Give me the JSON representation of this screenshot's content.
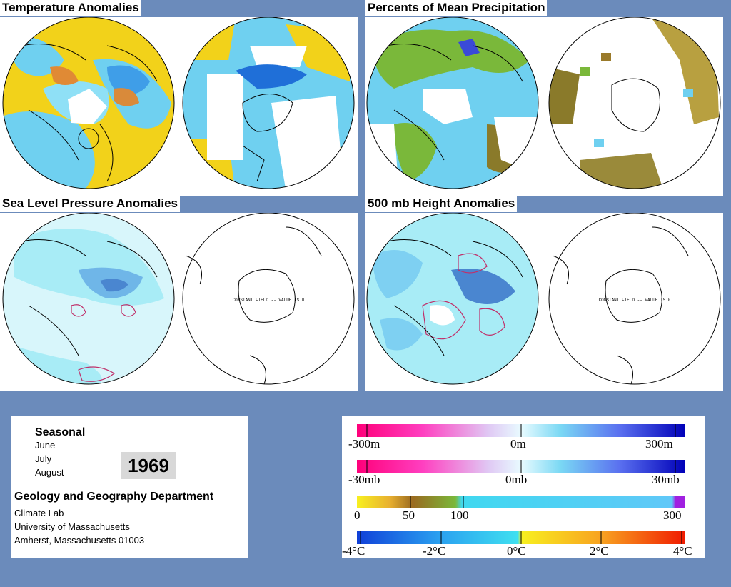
{
  "panels": {
    "temperature": {
      "title": "Temperature Anomalies"
    },
    "precipitation": {
      "title": "Percents of Mean Precipitation"
    },
    "slp": {
      "title": "Sea Level Pressure Anomalies",
      "constant_field_note": "CONSTANT FIELD -- VALUE IS 0"
    },
    "height500": {
      "title": "500 mb Height Anomalies",
      "constant_field_note": "CONSTANT FIELD -- VALUE IS 0"
    }
  },
  "info": {
    "period": "Seasonal",
    "months": [
      "June",
      "July",
      "August"
    ],
    "year": "1969",
    "department": "Geology and Geography Department",
    "lab": "Climate Lab",
    "university": "University of Massachusetts",
    "address": "Amherst, Massachusetts 01003"
  },
  "legend": {
    "height_scale": {
      "labels": [
        "-300m",
        "0m",
        "300m"
      ]
    },
    "pressure_scale": {
      "labels": [
        "-30mb",
        "0mb",
        "30mb"
      ]
    },
    "precip_scale": {
      "labels": [
        "0",
        "50",
        "100",
        "300"
      ]
    },
    "temp_scale": {
      "labels": [
        "-4°C",
        "-2°C",
        "0°C",
        "2°C",
        "4°C"
      ]
    }
  },
  "colors": {
    "background": "#6b8bbb",
    "anomaly_blue": "#6fd0f0",
    "anomaly_yellow": "#f2d21a",
    "anomaly_orange": "#e07a2a",
    "precip_green": "#7ab83a",
    "contour_red": "#c0306a",
    "contour_blue": "#2a4aa0"
  }
}
